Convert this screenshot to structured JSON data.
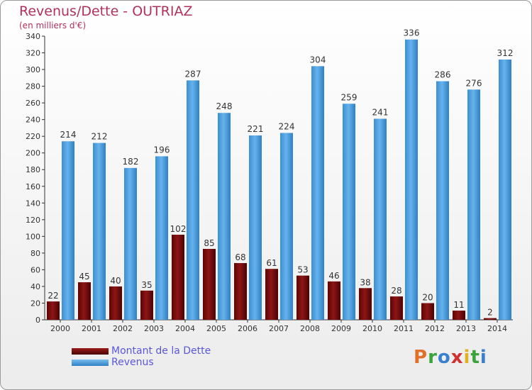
{
  "header": {
    "title": "Revenus/Dette - OUTRIAZ",
    "subtitle": "(en milliers d'€)"
  },
  "legend": {
    "items": [
      {
        "label": "Montant de la Dette",
        "color": "#7a0b0b"
      },
      {
        "label": "Revenus",
        "color": "#4f9fdc"
      }
    ]
  },
  "logo": {
    "text": "Proxiti"
  },
  "colors": {
    "dette": "#7a0b0b",
    "revenus": "#4f9fdc",
    "title": "#b0325a",
    "legend_text": "#5a57d8"
  },
  "chart_data": {
    "type": "bar",
    "title": "Revenus/Dette - OUTRIAZ",
    "subtitle": "(en milliers d'€)",
    "categories": [
      "2000",
      "2001",
      "2002",
      "2003",
      "2004",
      "2005",
      "2006",
      "2007",
      "2008",
      "2009",
      "2010",
      "2011",
      "2012",
      "2013",
      "2014"
    ],
    "series": [
      {
        "name": "Montant de la Dette",
        "values": [
          22,
          45,
          40,
          35,
          102,
          85,
          68,
          61,
          53,
          46,
          38,
          28,
          20,
          11,
          2
        ]
      },
      {
        "name": "Revenus",
        "values": [
          214,
          212,
          182,
          196,
          287,
          248,
          221,
          224,
          304,
          259,
          241,
          336,
          286,
          276,
          312
        ]
      }
    ],
    "ylim": [
      0,
      340
    ],
    "yticks": [
      0,
      20,
      40,
      60,
      80,
      100,
      120,
      140,
      160,
      180,
      200,
      220,
      240,
      260,
      280,
      300,
      320,
      340
    ],
    "grid": false,
    "legend_position": "bottom-left"
  }
}
